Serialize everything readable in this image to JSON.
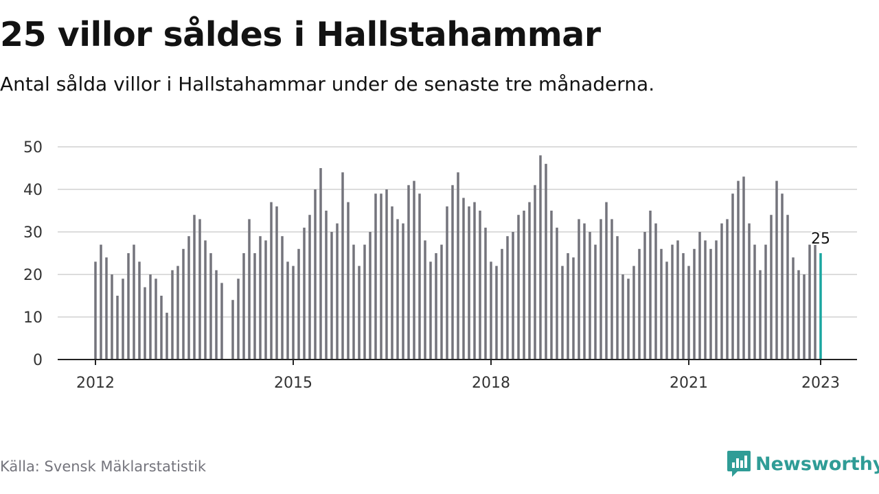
{
  "title": "25 villor såldes i Hallstahammar",
  "subtitle": "Antal sålda villor i Hallstahammar under de senaste tre månaderna.",
  "source": "Källa: Svensk Mäklarstatistik",
  "brand": {
    "name": "Newsworthy",
    "icon": "newsworthy-logo-icon",
    "color": "#2f9c96"
  },
  "colors": {
    "bar": "#74747c",
    "highlight": "#1aa6a0",
    "grid": "#dcdcdc",
    "axis": "#222222"
  },
  "chart_data": {
    "type": "bar",
    "title": "",
    "xlabel": "",
    "ylabel": "",
    "ylim": [
      0,
      50
    ],
    "yticks": [
      0,
      10,
      20,
      30,
      40,
      50
    ],
    "xticks": [
      "2012",
      "2015",
      "2018",
      "2021",
      "2023"
    ],
    "grid": true,
    "highlight_label": "25",
    "x": [
      "2012-01",
      "2012-02",
      "2012-03",
      "2012-04",
      "2012-05",
      "2012-06",
      "2012-07",
      "2012-08",
      "2012-09",
      "2012-10",
      "2012-11",
      "2012-12",
      "2013-01",
      "2013-02",
      "2013-03",
      "2013-04",
      "2013-05",
      "2013-06",
      "2013-07",
      "2013-08",
      "2013-09",
      "2013-10",
      "2013-11",
      "2013-12",
      "2014-01",
      "2014-02",
      "2014-03",
      "2014-04",
      "2014-05",
      "2014-06",
      "2014-07",
      "2014-08",
      "2014-09",
      "2014-10",
      "2014-11",
      "2014-12",
      "2015-01",
      "2015-02",
      "2015-03",
      "2015-04",
      "2015-05",
      "2015-06",
      "2015-07",
      "2015-08",
      "2015-09",
      "2015-10",
      "2015-11",
      "2015-12",
      "2016-01",
      "2016-02",
      "2016-03",
      "2016-04",
      "2016-05",
      "2016-06",
      "2016-07",
      "2016-08",
      "2016-09",
      "2016-10",
      "2016-11",
      "2016-12",
      "2017-01",
      "2017-02",
      "2017-03",
      "2017-04",
      "2017-05",
      "2017-06",
      "2017-07",
      "2017-08",
      "2017-09",
      "2017-10",
      "2017-11",
      "2017-12",
      "2018-01",
      "2018-02",
      "2018-03",
      "2018-04",
      "2018-05",
      "2018-06",
      "2018-07",
      "2018-08",
      "2018-09",
      "2018-10",
      "2018-11",
      "2018-12",
      "2019-01",
      "2019-02",
      "2019-03",
      "2019-04",
      "2019-05",
      "2019-06",
      "2019-07",
      "2019-08",
      "2019-09",
      "2019-10",
      "2019-11",
      "2019-12",
      "2020-01",
      "2020-02",
      "2020-03",
      "2020-04",
      "2020-05",
      "2020-06",
      "2020-07",
      "2020-08",
      "2020-09",
      "2020-10",
      "2020-11",
      "2020-12",
      "2021-01",
      "2021-02",
      "2021-03",
      "2021-04",
      "2021-05",
      "2021-06",
      "2021-07",
      "2021-08",
      "2021-09",
      "2021-10",
      "2021-11",
      "2021-12",
      "2022-01",
      "2022-02",
      "2022-03",
      "2022-04",
      "2022-05",
      "2022-06",
      "2022-07",
      "2022-08",
      "2022-09",
      "2022-10",
      "2022-11",
      "2022-12",
      "2023-01"
    ],
    "values": [
      23,
      27,
      24,
      20,
      15,
      19,
      25,
      27,
      23,
      17,
      20,
      19,
      15,
      11,
      21,
      22,
      26,
      29,
      34,
      33,
      28,
      25,
      21,
      18,
      null,
      14,
      19,
      25,
      33,
      25,
      29,
      28,
      37,
      36,
      29,
      23,
      22,
      26,
      31,
      34,
      40,
      45,
      35,
      30,
      32,
      44,
      37,
      27,
      22,
      27,
      30,
      39,
      39,
      40,
      36,
      33,
      32,
      41,
      42,
      39,
      28,
      23,
      25,
      27,
      36,
      41,
      44,
      38,
      36,
      37,
      35,
      31,
      23,
      22,
      26,
      29,
      30,
      34,
      35,
      37,
      41,
      48,
      46,
      35,
      31,
      22,
      25,
      24,
      33,
      32,
      30,
      27,
      33,
      37,
      33,
      29,
      20,
      19,
      22,
      26,
      30,
      35,
      32,
      26,
      23,
      27,
      28,
      25,
      22,
      26,
      30,
      28,
      26,
      28,
      32,
      33,
      39,
      42,
      43,
      32,
      27,
      21,
      27,
      34,
      42,
      39,
      34,
      24,
      21,
      20,
      27,
      27,
      25
    ]
  }
}
